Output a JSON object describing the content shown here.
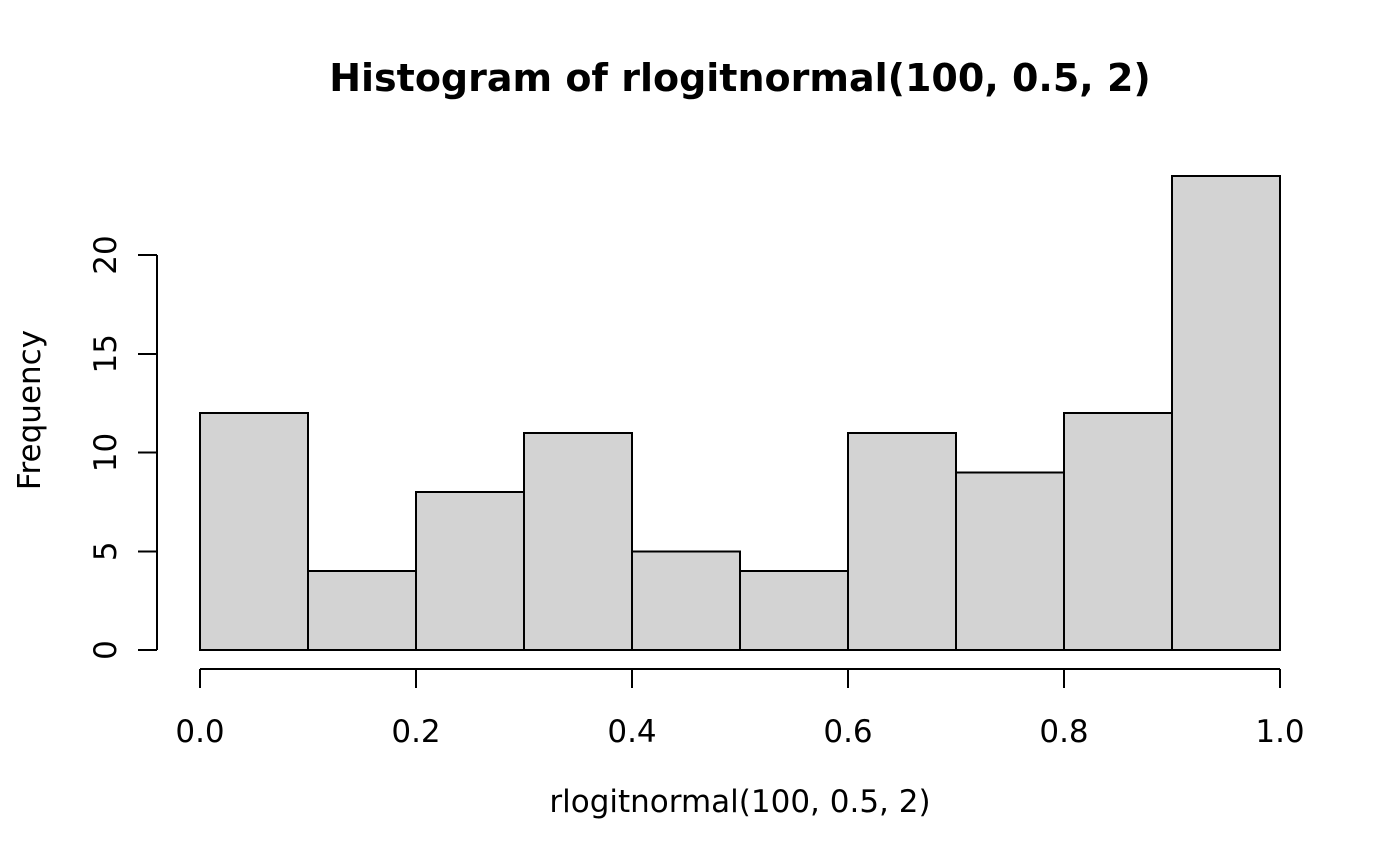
{
  "chart_data": {
    "type": "bar",
    "subtype": "histogram",
    "title": "Histogram of rlogitnormal(100, 0.5, 2)",
    "xlabel": "rlogitnormal(100, 0.5, 2)",
    "ylabel": "Frequency",
    "bin_edges": [
      0.0,
      0.1,
      0.2,
      0.3,
      0.4,
      0.5,
      0.6,
      0.7,
      0.8,
      0.9,
      1.0
    ],
    "counts": [
      12,
      4,
      8,
      11,
      5,
      4,
      11,
      9,
      12,
      24
    ],
    "total_n": 100,
    "x_ticks": [
      {
        "value": 0.0,
        "label": "0.0"
      },
      {
        "value": 0.2,
        "label": "0.2"
      },
      {
        "value": 0.4,
        "label": "0.4"
      },
      {
        "value": 0.6,
        "label": "0.6"
      },
      {
        "value": 0.8,
        "label": "0.8"
      },
      {
        "value": 1.0,
        "label": "1.0"
      }
    ],
    "y_ticks": [
      {
        "value": 0,
        "label": "0"
      },
      {
        "value": 5,
        "label": "5"
      },
      {
        "value": 10,
        "label": "10"
      },
      {
        "value": 15,
        "label": "15"
      },
      {
        "value": 20,
        "label": "20"
      }
    ],
    "xlim": [
      0.0,
      1.0
    ],
    "ylim": [
      0,
      24
    ],
    "grid": false,
    "legend": null,
    "colors": {
      "bar_fill": "#d3d3d3",
      "bar_stroke": "#000000",
      "axis": "#000000",
      "text": "#000000",
      "background": "#ffffff"
    }
  }
}
